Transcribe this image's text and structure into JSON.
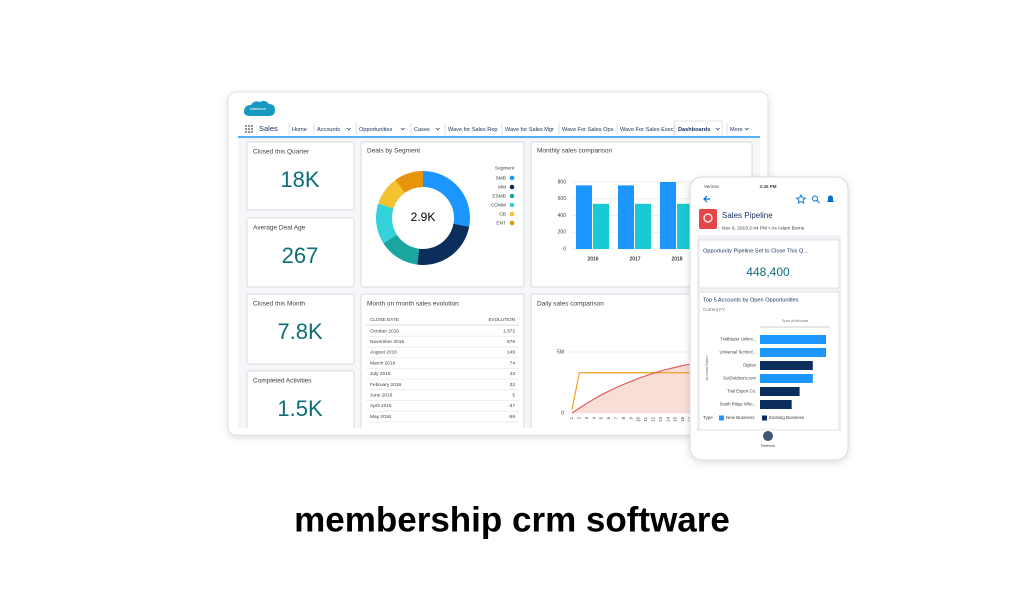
{
  "logo_text": "salesforce",
  "app_name": "Sales",
  "nav_tabs": [
    "Home",
    "Accounts",
    "Opportunities",
    "Cases",
    "Wave for Sales Rep",
    "Wave for Sales Mgr",
    "Wave For Sales Ops",
    "Wave For Sales Exec",
    "Dashboards",
    "More"
  ],
  "metrics": [
    {
      "label": "Closed this Quarter",
      "value": "18K"
    },
    {
      "label": "Average Deal Age",
      "value": "267"
    },
    {
      "label": "Closed this Month",
      "value": "7.8K"
    },
    {
      "label": "Completed Activities",
      "value": "1.5K"
    }
  ],
  "deals_by_segment": {
    "title": "Deals by Segment",
    "center_label": "2.9K",
    "legend_title": "Segment",
    "segments": [
      {
        "name": "SMB",
        "color": "#1b96ff",
        "value": 28
      },
      {
        "name": "MM",
        "color": "#0b2e5c",
        "value": 24
      },
      {
        "name": "ESMB",
        "color": "#1aa5a0",
        "value": 14
      },
      {
        "name": "COMM",
        "color": "#33d3d9",
        "value": 14
      },
      {
        "name": "GB",
        "color": "#f2c230",
        "value": 10
      },
      {
        "name": "ENT",
        "color": "#e8930c",
        "value": 10
      }
    ]
  },
  "monthly_sales": {
    "title": "Monthly sales comparison",
    "categories": [
      "2016",
      "2017",
      "2018"
    ],
    "ylim": [
      0,
      800
    ],
    "yticks": [
      0,
      200,
      400,
      600,
      800
    ],
    "series": [
      {
        "color": "#1b96ff",
        "values": [
          760,
          760,
          800
        ]
      },
      {
        "color": "#19c9d4",
        "values": [
          540,
          540,
          540
        ]
      }
    ]
  },
  "month_on_month": {
    "title": "Month on month sales evolution",
    "columns": [
      "CLOSE DATE",
      "EVOLUTION"
    ],
    "rows": [
      [
        "October 2016",
        "1,372"
      ],
      [
        "November 2016",
        "578"
      ],
      [
        "August 2016",
        "149"
      ],
      [
        "March 2016",
        "74"
      ],
      [
        "July 2016",
        "43"
      ],
      [
        "February 2016",
        "32"
      ],
      [
        "June 2016",
        "5"
      ],
      [
        "April 2016",
        "-37"
      ],
      [
        "May 2016",
        "-59"
      ]
    ]
  },
  "daily_sales": {
    "title": "Daily sales comparison",
    "days": [
      "1",
      "2",
      "3",
      "4",
      "5",
      "6",
      "7",
      "8",
      "9",
      "10",
      "11",
      "12",
      "13",
      "14",
      "15",
      "16",
      "17"
    ],
    "ylim": [
      0,
      5
    ],
    "yticks": [
      0,
      {
        "value": 5,
        "label": "5M"
      }
    ],
    "series": [
      {
        "color": "#f0a020",
        "values": [
          0.3,
          3.3,
          3.3,
          3.3,
          3.3,
          3.3,
          3.3,
          3.3,
          3.3,
          3.3,
          3.3,
          3.3,
          3.3,
          3.3,
          3.3,
          3.3,
          3.3
        ]
      },
      {
        "color": "#e0605a",
        "values": [
          0,
          0.4,
          0.8,
          1.15,
          1.5,
          1.8,
          2.1,
          2.35,
          2.6,
          2.85,
          3.05,
          3.25,
          3.45,
          3.6,
          3.75,
          3.9,
          4.0
        ]
      }
    ]
  },
  "phone": {
    "carrier": "Verizon",
    "time": "2:45 PM",
    "title": "Sales Pipeline",
    "subtitle": "Nov 9, 2019 2:44 PM • As Adam Burns",
    "kpi_title": "Opportunity Pipeline Set to Close This Q...",
    "kpi_value": "448,400",
    "top_accounts": {
      "title": "Top 5 Accounts by Open Opportunities",
      "subtitle": "Current FY",
      "x_title": "Sum of Amount",
      "y_title": "Account Name",
      "accounts": [
        "Trailblazer Unlimi...",
        "Universal Technol...",
        "Digitex",
        "GetOutdoors.com",
        "Trail Expert Co.",
        "South Ridge Who..."
      ],
      "values": [
        100,
        100,
        80,
        80,
        60,
        48
      ],
      "colors": [
        "#1b96ff",
        "#1b96ff",
        "#0b2e5c",
        "#1b96ff",
        "#0b2e5c",
        "#0b2e5c"
      ],
      "xlim": [
        0,
        100
      ],
      "legend_title": "Type",
      "legend": [
        {
          "name": "New Business",
          "color": "#1b96ff"
        },
        {
          "name": "Existing Business",
          "color": "#0b2e5c"
        }
      ]
    },
    "refresh": "Refresh"
  },
  "caption": "membership crm software"
}
